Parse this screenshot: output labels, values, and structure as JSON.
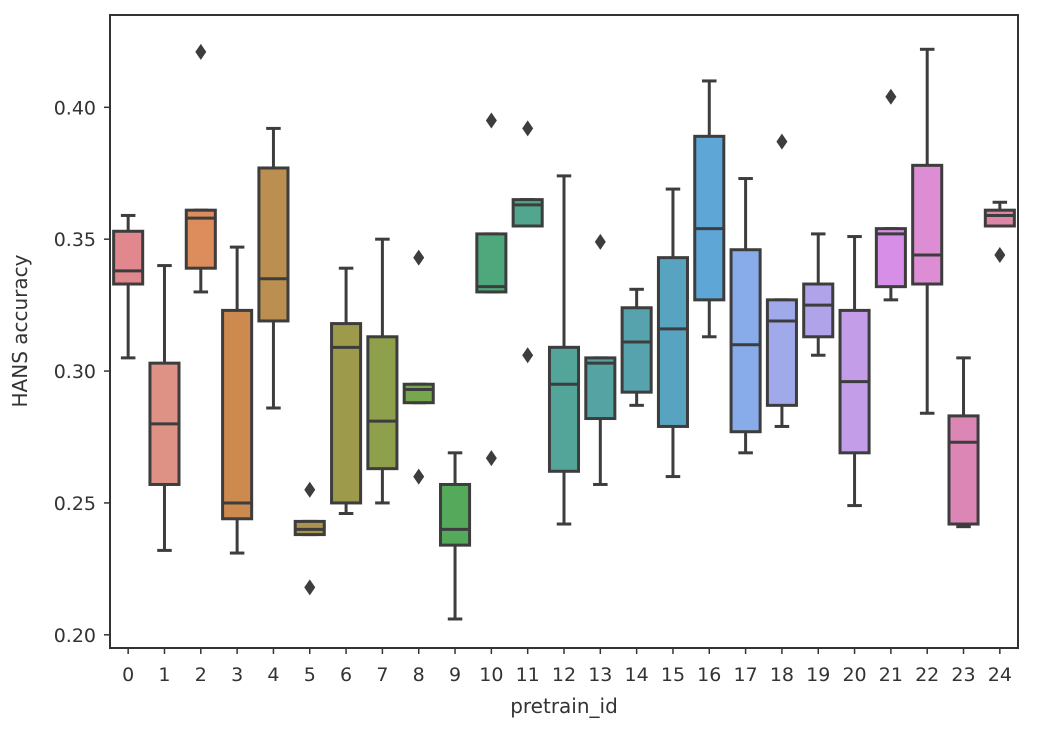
{
  "chart_data": {
    "type": "box",
    "title": "",
    "xlabel": "pretrain_id",
    "ylabel": "HANS accuracy",
    "ylim": [
      0.195,
      0.435
    ],
    "yticks": [
      0.2,
      0.25,
      0.3,
      0.35,
      0.4
    ],
    "ytick_labels": [
      "0.20",
      "0.25",
      "0.30",
      "0.35",
      "0.40"
    ],
    "grid": false,
    "boxes": [
      {
        "id": "0",
        "color": "#e0888e",
        "q1": 0.333,
        "median": 0.338,
        "q3": 0.353,
        "whisker_low": 0.305,
        "whisker_high": 0.359,
        "outliers": []
      },
      {
        "id": "1",
        "color": "#de9185",
        "q1": 0.257,
        "median": 0.28,
        "q3": 0.303,
        "whisker_low": 0.232,
        "whisker_high": 0.34,
        "outliers": []
      },
      {
        "id": "2",
        "color": "#dd8d5c",
        "q1": 0.339,
        "median": 0.358,
        "q3": 0.361,
        "whisker_low": 0.33,
        "whisker_high": 0.361,
        "outliers": [
          0.421
        ]
      },
      {
        "id": "3",
        "color": "#cd8a4f",
        "q1": 0.244,
        "median": 0.25,
        "q3": 0.323,
        "whisker_low": 0.231,
        "whisker_high": 0.347,
        "outliers": []
      },
      {
        "id": "4",
        "color": "#bb8f4f",
        "q1": 0.319,
        "median": 0.335,
        "q3": 0.377,
        "whisker_low": 0.286,
        "whisker_high": 0.392,
        "outliers": []
      },
      {
        "id": "5",
        "color": "#ab934d",
        "q1": 0.238,
        "median": 0.24,
        "q3": 0.243,
        "whisker_low": 0.238,
        "whisker_high": 0.243,
        "outliers": [
          0.255,
          0.218
        ]
      },
      {
        "id": "6",
        "color": "#9d9a4c",
        "q1": 0.25,
        "median": 0.309,
        "q3": 0.318,
        "whisker_low": 0.246,
        "whisker_high": 0.339,
        "outliers": []
      },
      {
        "id": "7",
        "color": "#8ea04c",
        "q1": 0.263,
        "median": 0.281,
        "q3": 0.313,
        "whisker_low": 0.25,
        "whisker_high": 0.35,
        "outliers": []
      },
      {
        "id": "8",
        "color": "#76a64e",
        "q1": 0.288,
        "median": 0.293,
        "q3": 0.295,
        "whisker_low": 0.288,
        "whisker_high": 0.295,
        "outliers": [
          0.343,
          0.26
        ]
      },
      {
        "id": "9",
        "color": "#55a95b",
        "q1": 0.234,
        "median": 0.24,
        "q3": 0.257,
        "whisker_low": 0.206,
        "whisker_high": 0.269,
        "outliers": []
      },
      {
        "id": "10",
        "color": "#4fa77c",
        "q1": 0.33,
        "median": 0.332,
        "q3": 0.352,
        "whisker_low": 0.33,
        "whisker_high": 0.352,
        "outliers": [
          0.395,
          0.267
        ]
      },
      {
        "id": "11",
        "color": "#51a68d",
        "q1": 0.355,
        "median": 0.363,
        "q3": 0.365,
        "whisker_low": 0.355,
        "whisker_high": 0.365,
        "outliers": [
          0.392,
          0.306
        ]
      },
      {
        "id": "12",
        "color": "#53a499",
        "q1": 0.262,
        "median": 0.295,
        "q3": 0.309,
        "whisker_low": 0.242,
        "whisker_high": 0.374,
        "outliers": []
      },
      {
        "id": "13",
        "color": "#55a3a3",
        "q1": 0.282,
        "median": 0.303,
        "q3": 0.305,
        "whisker_low": 0.257,
        "whisker_high": 0.305,
        "outliers": [
          0.349
        ]
      },
      {
        "id": "14",
        "color": "#56a3ae",
        "q1": 0.292,
        "median": 0.311,
        "q3": 0.324,
        "whisker_low": 0.287,
        "whisker_high": 0.331,
        "outliers": []
      },
      {
        "id": "15",
        "color": "#58a3bf",
        "q1": 0.279,
        "median": 0.316,
        "q3": 0.343,
        "whisker_low": 0.26,
        "whisker_high": 0.369,
        "outliers": []
      },
      {
        "id": "16",
        "color": "#5ea6d6",
        "q1": 0.327,
        "median": 0.354,
        "q3": 0.389,
        "whisker_low": 0.313,
        "whisker_high": 0.41,
        "outliers": []
      },
      {
        "id": "17",
        "color": "#88acea",
        "q1": 0.277,
        "median": 0.31,
        "q3": 0.346,
        "whisker_low": 0.269,
        "whisker_high": 0.373,
        "outliers": []
      },
      {
        "id": "18",
        "color": "#a0aaea",
        "q1": 0.287,
        "median": 0.319,
        "q3": 0.327,
        "whisker_low": 0.279,
        "whisker_high": 0.327,
        "outliers": [
          0.387
        ]
      },
      {
        "id": "19",
        "color": "#b1a3ea",
        "q1": 0.313,
        "median": 0.325,
        "q3": 0.333,
        "whisker_low": 0.306,
        "whisker_high": 0.352,
        "outliers": []
      },
      {
        "id": "20",
        "color": "#c39de8",
        "q1": 0.269,
        "median": 0.296,
        "q3": 0.323,
        "whisker_low": 0.249,
        "whisker_high": 0.351,
        "outliers": []
      },
      {
        "id": "21",
        "color": "#d78ee7",
        "q1": 0.332,
        "median": 0.352,
        "q3": 0.354,
        "whisker_low": 0.327,
        "whisker_high": 0.354,
        "outliers": [
          0.404
        ]
      },
      {
        "id": "22",
        "color": "#dc8dd3",
        "q1": 0.333,
        "median": 0.344,
        "q3": 0.378,
        "whisker_low": 0.284,
        "whisker_high": 0.422,
        "outliers": []
      },
      {
        "id": "23",
        "color": "#dc86b6",
        "q1": 0.242,
        "median": 0.273,
        "q3": 0.283,
        "whisker_low": 0.241,
        "whisker_high": 0.305,
        "outliers": []
      },
      {
        "id": "24",
        "color": "#de86a8",
        "q1": 0.355,
        "median": 0.359,
        "q3": 0.361,
        "whisker_low": 0.355,
        "whisker_high": 0.364,
        "outliers": [
          0.344
        ]
      }
    ]
  }
}
